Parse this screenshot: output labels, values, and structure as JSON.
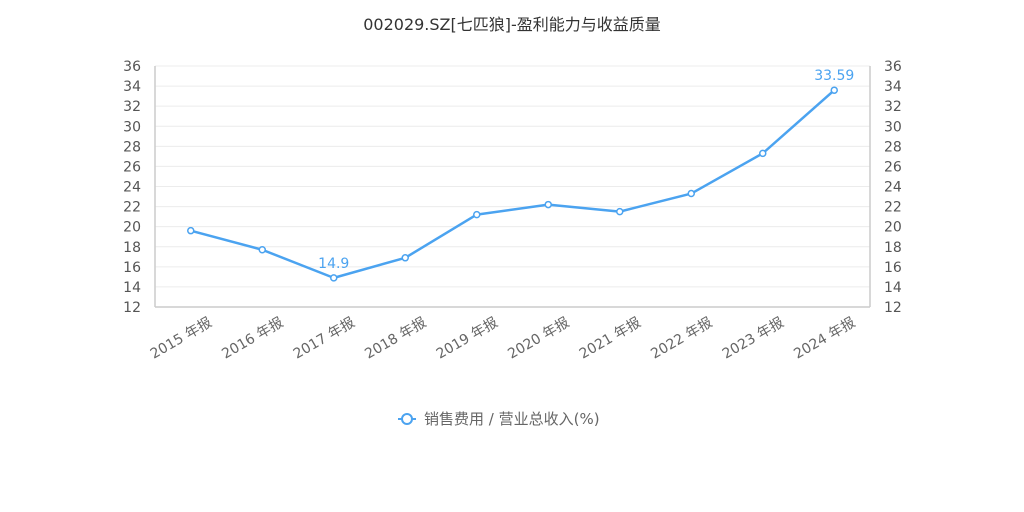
{
  "chart_data": {
    "type": "line",
    "title": "002029.SZ[七匹狼]-盈利能力与收益质量",
    "categories": [
      "2015 年报",
      "2016 年报",
      "2017 年报",
      "2018 年报",
      "2019 年报",
      "2020 年报",
      "2021 年报",
      "2022 年报",
      "2023 年报",
      "2024 年报"
    ],
    "series": [
      {
        "name": "销售费用 / 营业总收入(%)",
        "values": [
          19.6,
          17.7,
          14.9,
          16.9,
          21.2,
          22.2,
          21.5,
          23.3,
          27.3,
          33.59
        ],
        "color": "#4ba3f0"
      }
    ],
    "data_labels": [
      {
        "index": 2,
        "text": "14.9"
      },
      {
        "index": 9,
        "text": "33.59"
      }
    ],
    "ylim": [
      12,
      36
    ],
    "ytick_step": 2,
    "dual_y_axis": true,
    "grid": true,
    "legend_position": "bottom"
  }
}
